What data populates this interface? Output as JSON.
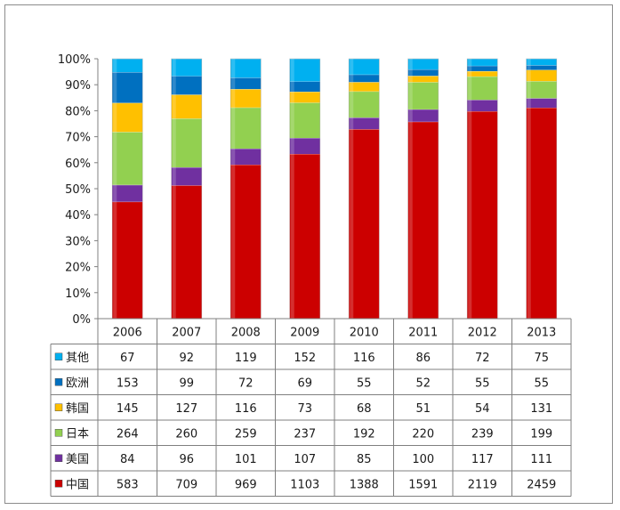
{
  "chart_data": {
    "type": "bar",
    "stacked": "percent",
    "title": "",
    "xlabel": "",
    "ylabel": "",
    "ylim": [
      0,
      100
    ],
    "yticks": [
      "0%",
      "10%",
      "20%",
      "30%",
      "40%",
      "50%",
      "60%",
      "70%",
      "80%",
      "90%",
      "100%"
    ],
    "grid": false,
    "legend_placement": "data-table-left",
    "categories": [
      "2006",
      "2007",
      "2008",
      "2009",
      "2010",
      "2011",
      "2012",
      "2013"
    ],
    "series": [
      {
        "name": "中国",
        "color": "#cc0000",
        "values": [
          583,
          709,
          969,
          1103,
          1388,
          1591,
          2119,
          2459
        ]
      },
      {
        "name": "美国",
        "color": "#7030a0",
        "values": [
          84,
          96,
          101,
          107,
          85,
          100,
          117,
          111
        ]
      },
      {
        "name": "日本",
        "color": "#92d050",
        "values": [
          264,
          260,
          259,
          237,
          192,
          220,
          239,
          199
        ]
      },
      {
        "name": "韩国",
        "color": "#ffc000",
        "values": [
          145,
          127,
          116,
          73,
          68,
          51,
          54,
          131
        ]
      },
      {
        "name": "欧洲",
        "color": "#0070c0",
        "values": [
          153,
          99,
          72,
          69,
          55,
          52,
          55,
          55
        ]
      },
      {
        "name": "其他",
        "color": "#00b0f0",
        "values": [
          67,
          92,
          119,
          152,
          116,
          86,
          72,
          75
        ]
      }
    ],
    "table_row_order": [
      "其他",
      "欧洲",
      "韩国",
      "日本",
      "美国",
      "中国"
    ]
  }
}
